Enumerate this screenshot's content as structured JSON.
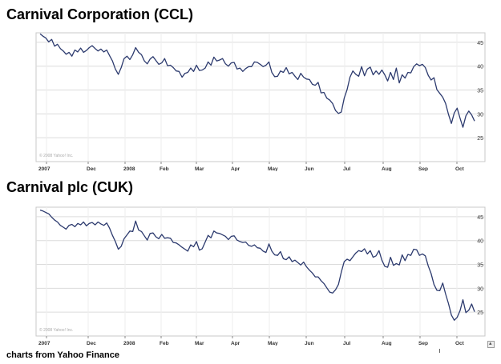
{
  "footer": {
    "source_text": "charts from Yahoo Finance"
  },
  "colors": {
    "line": "#2c3a6e",
    "grid": "#dcdcdc",
    "frame": "#c8c8c8",
    "text": "#000000",
    "tick_text": "#333333",
    "watermark": "#aaaaaa"
  },
  "chart_data": [
    {
      "type": "line",
      "title": "Carnival Corporation (CCL)",
      "xlabel": "",
      "ylabel": "",
      "months": [
        "2007",
        "Dec",
        "2008",
        "Feb",
        "Mar",
        "Apr",
        "May",
        "Jun",
        "Jul",
        "Aug",
        "Sep",
        "Oct"
      ],
      "yticks": [
        45,
        40,
        35,
        30,
        25
      ],
      "ylim": [
        20,
        47
      ],
      "grid": true,
      "watermark": "© 2008 Yahoo! Inc.",
      "series": [
        {
          "values": [
            46.8,
            46.3,
            45.9,
            45.1,
            45.6,
            44.2,
            44.6,
            43.7,
            43.2,
            42.5,
            42.9,
            42.1,
            43.4,
            43.0,
            43.8,
            42.9,
            43.3,
            43.9,
            44.3,
            43.7,
            43.2,
            43.6,
            43.0,
            43.4,
            42.2,
            41.1,
            39.4,
            38.3,
            39.7,
            41.6,
            42.1,
            41.4,
            42.4,
            43.9,
            42.9,
            42.4,
            41.1,
            40.5,
            41.5,
            42.0,
            41.2,
            40.4,
            40.7,
            41.6,
            40.1,
            40.2,
            39.7,
            39.0,
            38.9,
            37.7,
            38.5,
            38.7,
            39.6,
            38.9,
            40.2,
            39.1,
            39.2,
            39.6,
            40.9,
            40.2,
            41.9,
            41.1,
            41.3,
            41.6,
            40.5,
            40.0,
            40.7,
            40.8,
            39.4,
            39.6,
            38.9,
            39.5,
            39.9,
            39.9,
            40.9,
            40.8,
            40.4,
            39.9,
            40.2,
            40.9,
            38.7,
            37.8,
            37.9,
            39.0,
            38.7,
            39.7,
            38.4,
            38.7,
            37.9,
            37.2,
            38.5,
            37.7,
            37.3,
            37.2,
            36.2,
            36.0,
            36.6,
            34.4,
            34.5,
            33.3,
            32.9,
            32.2,
            30.7,
            30.1,
            30.4,
            33.3,
            35.1,
            37.7,
            39.0,
            38.3,
            37.9,
            39.9,
            38.0,
            39.4,
            39.8,
            38.2,
            39.0,
            38.3,
            39.2,
            38.2,
            36.9,
            38.7,
            37.2,
            39.6,
            36.5,
            38.2,
            37.5,
            38.7,
            38.6,
            39.9,
            40.5,
            40.1,
            40.4,
            39.7,
            38.1,
            37.1,
            37.6,
            35.1,
            34.3,
            33.5,
            32.2,
            29.9,
            28.0,
            30.2,
            31.2,
            29.1,
            27.2,
            29.6,
            30.6,
            29.8,
            28.5
          ]
        }
      ]
    },
    {
      "type": "line",
      "title": "Carnival plc (CUK)",
      "xlabel": "",
      "ylabel": "",
      "months": [
        "2007",
        "Dec",
        "2008",
        "Feb",
        "Mar",
        "Apr",
        "May",
        "Jun",
        "Jul",
        "Aug",
        "Sep",
        "Oct"
      ],
      "yticks": [
        45,
        40,
        35,
        30,
        25
      ],
      "ylim": [
        20,
        47
      ],
      "grid": true,
      "watermark": "© 2008 Yahoo! Inc.",
      "series": [
        {
          "values": [
            46.4,
            46.2,
            45.9,
            45.6,
            44.9,
            44.3,
            43.9,
            43.2,
            42.8,
            42.4,
            43.2,
            43.4,
            42.9,
            43.6,
            43.3,
            43.9,
            43.1,
            43.6,
            43.8,
            43.3,
            43.9,
            43.5,
            43.2,
            43.7,
            42.6,
            41.1,
            39.8,
            38.2,
            38.8,
            40.4,
            41.2,
            42.0,
            41.9,
            44.1,
            42.2,
            41.9,
            41.0,
            40.1,
            41.5,
            41.6,
            40.8,
            40.4,
            41.3,
            40.5,
            40.6,
            40.5,
            39.6,
            39.5,
            39.1,
            38.6,
            38.2,
            37.8,
            39.1,
            38.7,
            39.8,
            38.0,
            38.3,
            39.7,
            41.1,
            40.6,
            42.0,
            41.6,
            41.5,
            41.2,
            40.9,
            40.2,
            40.9,
            41.0,
            40.1,
            39.8,
            39.6,
            39.7,
            39.0,
            38.8,
            39.1,
            38.5,
            38.4,
            37.8,
            37.5,
            39.3,
            37.8,
            37.0,
            36.9,
            37.7,
            36.2,
            36.0,
            36.6,
            35.6,
            35.9,
            35.4,
            34.9,
            35.5,
            34.5,
            33.8,
            33.2,
            32.4,
            32.4,
            31.6,
            31.0,
            30.1,
            29.2,
            29.0,
            29.7,
            30.8,
            33.4,
            35.6,
            36.1,
            35.8,
            36.6,
            37.4,
            37.9,
            37.7,
            38.3,
            37.2,
            37.9,
            36.5,
            36.8,
            37.9,
            35.9,
            34.6,
            34.4,
            36.5,
            34.8,
            35.2,
            34.9,
            37.0,
            35.8,
            37.1,
            36.9,
            38.2,
            38.1,
            36.9,
            37.2,
            36.8,
            34.7,
            33.1,
            30.8,
            29.6,
            29.5,
            31.1,
            28.8,
            26.8,
            24.4,
            23.3,
            23.9,
            25.3,
            27.6,
            24.9,
            25.4,
            26.7,
            25.1
          ]
        }
      ]
    }
  ]
}
